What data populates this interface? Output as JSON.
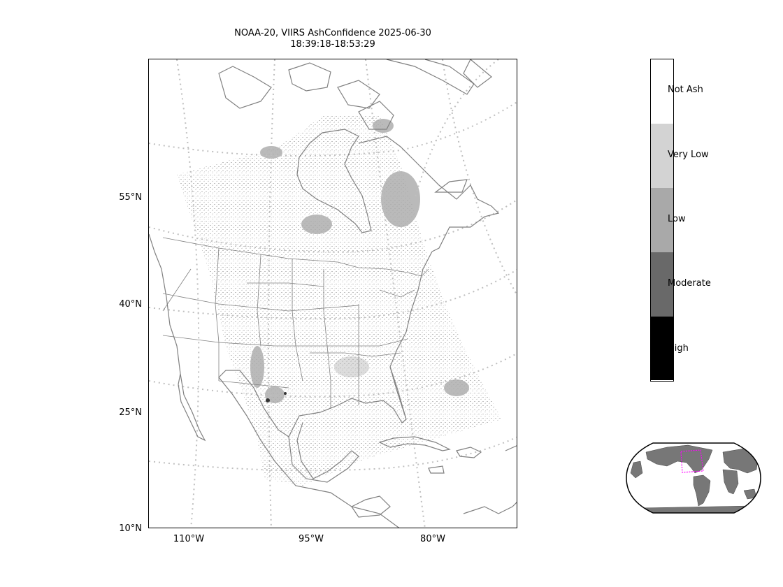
{
  "title": {
    "line1": "NOAA-20, VIIRS AshConfidence 2025-06-30",
    "line2": "18:39:18-18:53:29"
  },
  "map": {
    "lat_ticks": [
      "55°N",
      "40°N",
      "25°N",
      "10°N"
    ],
    "lon_ticks": [
      "110°W",
      "95°W",
      "80°W"
    ],
    "coastline_color": "#808080",
    "graticule_color": "#bfbfbf"
  },
  "colorbar": {
    "categories": [
      {
        "label": "Not Ash",
        "color": "#ffffff"
      },
      {
        "label": "Very Low",
        "color": "#d3d3d3"
      },
      {
        "label": "Low",
        "color": "#a9a9a9"
      },
      {
        "label": "Moderate",
        "color": "#696969"
      },
      {
        "label": "High",
        "color": "#000000"
      }
    ]
  },
  "inset": {
    "land_color": "#808080",
    "region_box_color": "#ff00ff"
  }
}
